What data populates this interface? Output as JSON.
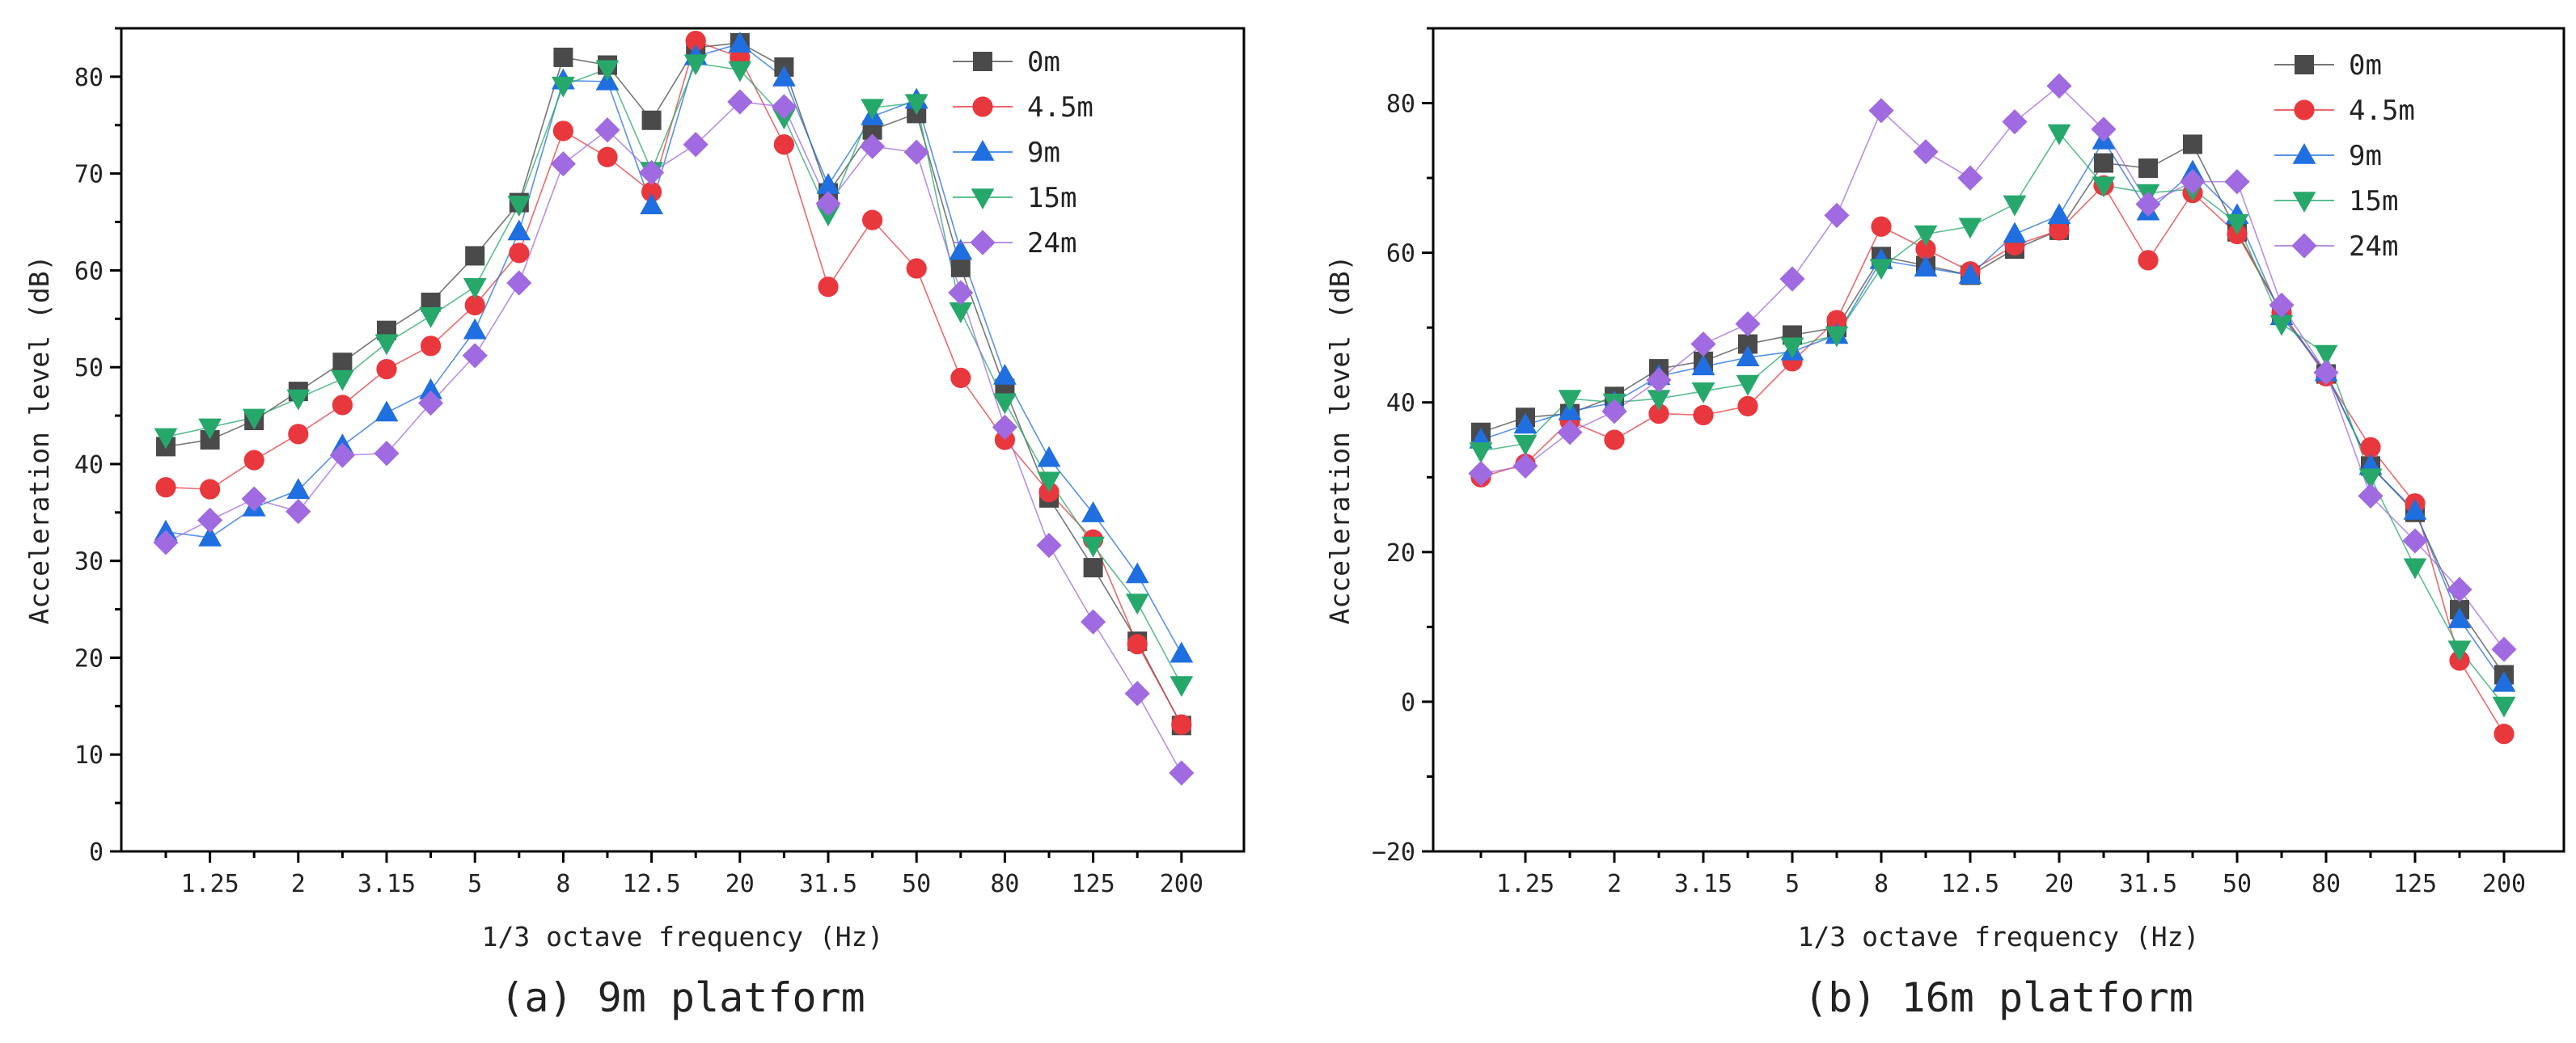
{
  "colors": {
    "0m": "#4a4a4a",
    "4.5m": "#e8373d",
    "9m": "#1f6fe0",
    "15m": "#27a86b",
    "24m": "#a06ae0"
  },
  "chart_data": [
    {
      "type": "line",
      "caption": "(a) 9m platform",
      "xlabel": "1/3 octave frequency (Hz)",
      "ylabel": "Acceleration level (dB)",
      "ylim": [
        0,
        85
      ],
      "yticks": [
        "0",
        "10",
        "20",
        "30",
        "40",
        "50",
        "60",
        "70",
        "80"
      ],
      "categories": [
        "1",
        "1.25",
        "1.6",
        "2",
        "2.5",
        "3.15",
        "4",
        "5",
        "6.3",
        "8",
        "10",
        "12.5",
        "16",
        "20",
        "25",
        "31.5",
        "40",
        "50",
        "63",
        "80",
        "100",
        "125",
        "160",
        "200"
      ],
      "xtick_labels": [
        "1.25",
        "2",
        "3.15",
        "5",
        "8",
        "12.5",
        "20",
        "31.5",
        "50",
        "80",
        "125",
        "200"
      ],
      "legend_position": "top-right",
      "series": [
        {
          "name": "0m",
          "marker": "square",
          "values": [
            41.8,
            42.5,
            44.5,
            47.5,
            50.5,
            53.8,
            56.7,
            61.5,
            67.0,
            82.0,
            81.2,
            75.5,
            83.0,
            83.5,
            81.0,
            68.0,
            74.5,
            76.2,
            60.3,
            47.8,
            36.5,
            29.3,
            21.7,
            13.0
          ]
        },
        {
          "name": "4.5m",
          "marker": "circle",
          "values": [
            37.6,
            37.4,
            40.4,
            43.1,
            46.1,
            49.8,
            52.2,
            56.4,
            61.8,
            74.4,
            71.7,
            68.1,
            83.7,
            82.0,
            73.0,
            58.3,
            65.2,
            60.2,
            48.9,
            42.5,
            37.1,
            32.2,
            21.4,
            13.1
          ]
        },
        {
          "name": "9m",
          "marker": "triangle-up",
          "values": [
            33.0,
            32.4,
            35.5,
            37.3,
            41.9,
            45.3,
            47.6,
            53.8,
            64.0,
            79.6,
            79.5,
            66.7,
            82.1,
            83.4,
            79.9,
            68.8,
            75.9,
            77.6,
            62.0,
            49.1,
            40.6,
            34.9,
            28.6,
            20.4
          ]
        },
        {
          "name": "15m",
          "marker": "triangle-down",
          "values": [
            42.8,
            43.8,
            44.8,
            46.8,
            48.8,
            52.5,
            55.3,
            58.3,
            66.8,
            79.1,
            80.8,
            70.3,
            81.4,
            80.7,
            75.8,
            65.8,
            76.8,
            77.3,
            55.8,
            46.4,
            38.3,
            31.6,
            25.7,
            17.2
          ]
        },
        {
          "name": "24m",
          "marker": "diamond",
          "values": [
            31.9,
            34.2,
            36.4,
            35.1,
            40.9,
            41.1,
            46.3,
            51.2,
            58.7,
            71.0,
            74.5,
            70.1,
            73.0,
            77.4,
            76.9,
            66.9,
            72.8,
            72.2,
            57.7,
            43.8,
            31.6,
            23.7,
            16.3,
            8.1
          ]
        }
      ]
    },
    {
      "type": "line",
      "caption": "(b) 16m platform",
      "xlabel": "1/3 octave frequency (Hz)",
      "ylabel": "Acceleration level (dB)",
      "ylim": [
        -20,
        90
      ],
      "yticks": [
        "−20",
        "0",
        "20",
        "40",
        "60",
        "80"
      ],
      "categories": [
        "1",
        "1.25",
        "1.6",
        "2",
        "2.5",
        "3.15",
        "4",
        "5",
        "6.3",
        "8",
        "10",
        "12.5",
        "16",
        "20",
        "25",
        "31.5",
        "40",
        "50",
        "63",
        "80",
        "100",
        "125",
        "160",
        "200"
      ],
      "xtick_labels": [
        "1.25",
        "2",
        "3.15",
        "5",
        "8",
        "12.5",
        "20",
        "31.5",
        "50",
        "80",
        "125",
        "200"
      ],
      "legend_position": "top-right",
      "series": [
        {
          "name": "0m",
          "marker": "square",
          "values": [
            36.0,
            38.0,
            38.5,
            40.8,
            44.5,
            45.5,
            47.8,
            49.0,
            50.0,
            59.5,
            58.3,
            57.0,
            60.5,
            63.0,
            72.0,
            71.3,
            74.5,
            62.8,
            52.0,
            43.8,
            31.5,
            25.3,
            12.3,
            3.6
          ]
        },
        {
          "name": "4.5m",
          "marker": "circle",
          "values": [
            30.0,
            31.8,
            37.5,
            35.0,
            38.5,
            38.3,
            39.5,
            45.5,
            51.0,
            63.5,
            60.5,
            57.5,
            61.0,
            63.0,
            69.0,
            59.0,
            68.0,
            62.5,
            52.0,
            43.5,
            34.0,
            26.5,
            5.5,
            -4.3
          ]
        },
        {
          "name": "9m",
          "marker": "triangle-up",
          "values": [
            35.0,
            37.0,
            38.8,
            40.0,
            43.5,
            44.8,
            46.0,
            46.8,
            49.0,
            59.0,
            58.0,
            57.0,
            62.5,
            65.0,
            75.0,
            65.5,
            70.8,
            65.0,
            51.5,
            44.0,
            31.5,
            25.5,
            11.0,
            2.5
          ]
        },
        {
          "name": "15m",
          "marker": "triangle-down",
          "values": [
            33.5,
            34.5,
            40.5,
            40.0,
            40.5,
            41.5,
            42.5,
            47.5,
            49.0,
            58.0,
            62.5,
            63.5,
            66.5,
            76.0,
            69.0,
            68.0,
            68.5,
            64.0,
            50.5,
            46.5,
            30.0,
            18.0,
            7.0,
            -0.5
          ]
        },
        {
          "name": "24m",
          "marker": "diamond",
          "values": [
            30.5,
            31.5,
            36.0,
            38.8,
            43.0,
            47.8,
            50.5,
            56.5,
            65.0,
            79.0,
            73.5,
            70.0,
            77.5,
            82.3,
            76.5,
            66.5,
            69.5,
            69.5,
            53.0,
            44.0,
            27.5,
            21.5,
            15.0,
            7.0
          ]
        }
      ]
    }
  ]
}
